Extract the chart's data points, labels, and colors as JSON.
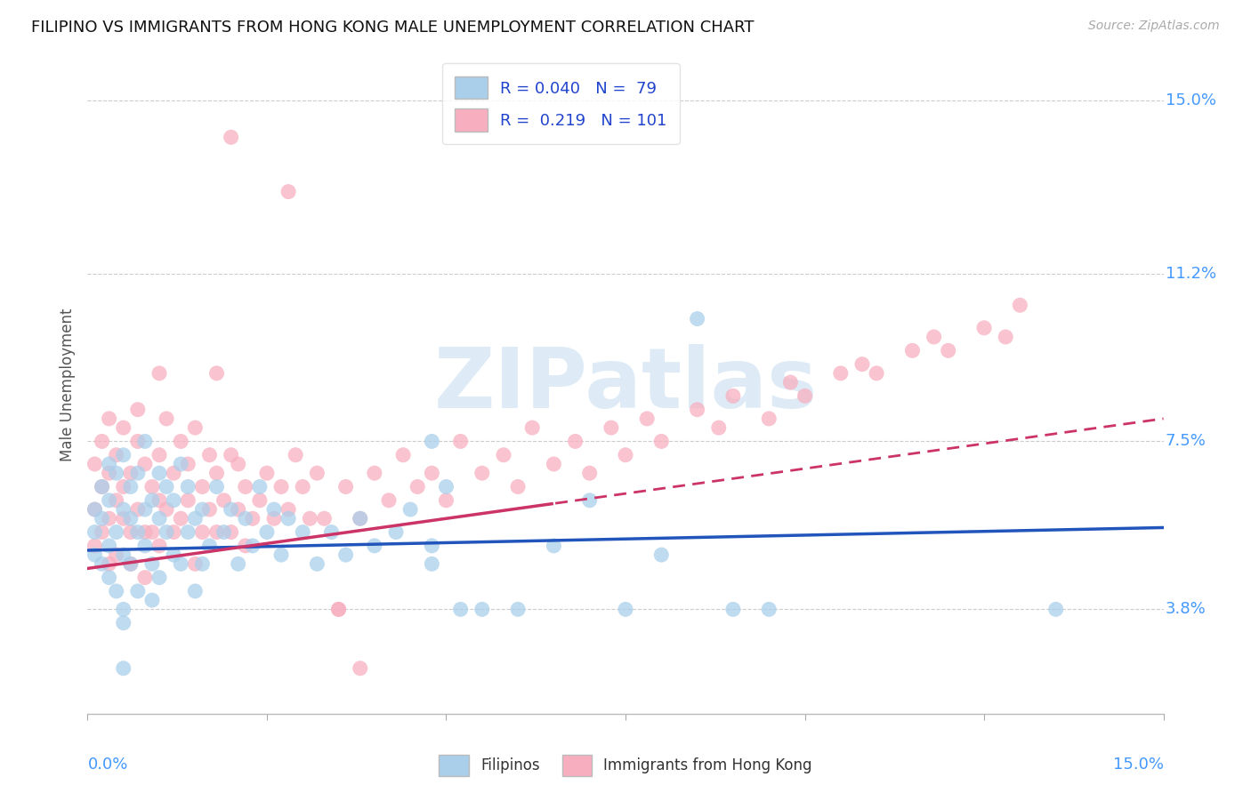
{
  "title": "FILIPINO VS IMMIGRANTS FROM HONG KONG MALE UNEMPLOYMENT CORRELATION CHART",
  "source": "Source: ZipAtlas.com",
  "ylabel": "Male Unemployment",
  "ytick_labels": [
    "3.8%",
    "7.5%",
    "11.2%",
    "15.0%"
  ],
  "ytick_values": [
    0.038,
    0.075,
    0.112,
    0.15
  ],
  "xmin": 0.0,
  "xmax": 0.15,
  "ymin": 0.015,
  "ymax": 0.16,
  "color_blue": "#aacfea",
  "color_pink": "#f7afc0",
  "trend_blue": "#2255bb",
  "trend_pink": "#cc3366",
  "watermark_color": "#c8dff0",
  "blue_r": 0.04,
  "blue_n": 79,
  "pink_r": 0.219,
  "pink_n": 101,
  "blue_trend_start_y": 0.051,
  "blue_trend_end_y": 0.056,
  "pink_trend_start_y": 0.047,
  "pink_trend_end_y": 0.08,
  "pink_trend_solid_end_x": 0.065,
  "pink_trend_dashed_start_x": 0.065
}
